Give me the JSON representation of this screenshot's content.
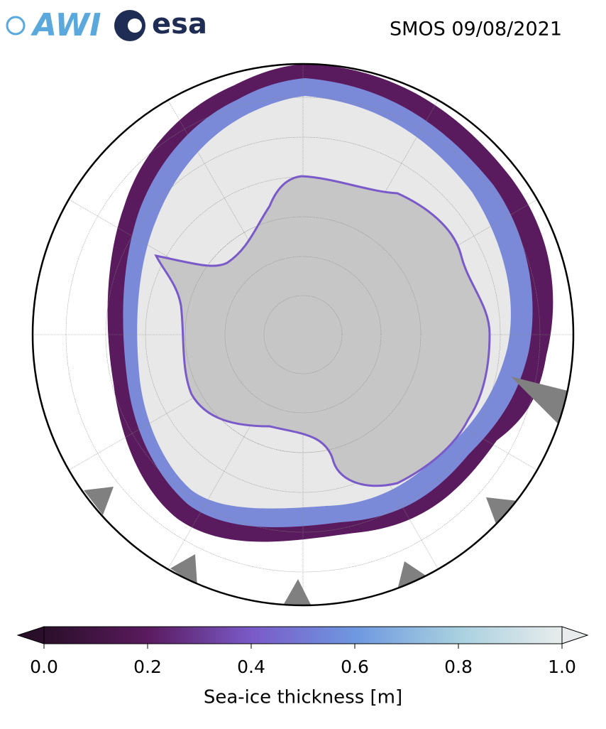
{
  "header": {
    "logos": [
      "AWI",
      "esa"
    ],
    "title": "SMOS 09/08/2021"
  },
  "colorbar": {
    "label": "Sea-ice thickness [m]",
    "range": [
      0,
      1
    ],
    "ticks": [
      {
        "value": 0,
        "label": "0.0"
      },
      {
        "value": 0.2,
        "label": "0.2"
      },
      {
        "value": 0.4,
        "label": "0.4"
      },
      {
        "value": 0.6,
        "label": "0.6"
      },
      {
        "value": 0.8,
        "label": "0.8"
      },
      {
        "value": 1,
        "label": "1.0"
      }
    ],
    "colors": [
      "#2a0f2a",
      "#5a1a5e",
      "#7a5ac8",
      "#6e98e0",
      "#a8d0e0",
      "#e8ecec"
    ]
  }
}
